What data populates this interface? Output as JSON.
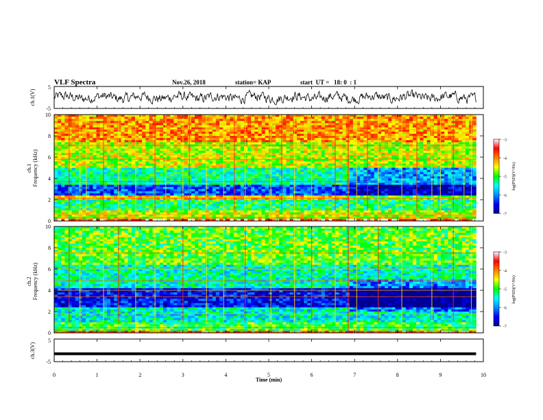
{
  "header": {
    "title": "VLF Spectra",
    "date": "Nov.26, 2018",
    "station": "station= KAP",
    "start_time": "start  UT =   18: 0  : 1"
  },
  "chart_data": [
    {
      "id": "ch1-waveform",
      "type": "line",
      "ylabel": "ch.1(V)",
      "ylim": [
        -5,
        5
      ],
      "yticks": [
        "5",
        "-5"
      ],
      "xlim": [
        0,
        10
      ],
      "data_extent_x": [
        0,
        9.83
      ],
      "description_of_signal": "noisy waveform fluctuating roughly between -3 and 3 V"
    },
    {
      "id": "ch1-spectrogram",
      "type": "heatmap",
      "ylabel": "ch.1\nFrequency (kHz)",
      "ylabel_lines": [
        "ch.1",
        "Frequency (kHz)"
      ],
      "ylim": [
        0,
        10
      ],
      "yticks": [
        0,
        2,
        4,
        6,
        8,
        10
      ],
      "xlim": [
        0,
        10
      ],
      "data_extent_x": [
        0,
        9.83
      ],
      "colorbar": {
        "label": "log(PSD)(V²/Hz)",
        "range": [
          -7,
          -3
        ],
        "ticks": [
          -3,
          -4,
          -5,
          -6,
          -7
        ],
        "colormap": [
          "#000090",
          "#0000ff",
          "#0090ff",
          "#00ffff",
          "#00ff00",
          "#ffff00",
          "#ff8000",
          "#ff0000",
          "#ffffff"
        ]
      },
      "segment_change_x": 6.85,
      "band_levels": [
        {
          "f0": 0.0,
          "f1": 0.3,
          "level": -3.4
        },
        {
          "f0": 0.3,
          "f1": 1.0,
          "level": -4.6
        },
        {
          "f0": 1.0,
          "f1": 2.0,
          "level": -5.2
        },
        {
          "f0": 2.0,
          "f1": 2.4,
          "level": -4.3
        },
        {
          "f0": 2.4,
          "f1": 3.5,
          "level": -6.2
        },
        {
          "f0": 3.5,
          "f1": 5.0,
          "level": -5.3
        },
        {
          "f0": 5.0,
          "f1": 7.5,
          "level": -4.6
        },
        {
          "f0": 7.5,
          "f1": 10.0,
          "level": -4.1
        }
      ],
      "horizontal_lines_khz": [
        0.3,
        0.6,
        2.1,
        2.2,
        3.7,
        5.2,
        5.8,
        6.2,
        7.1,
        8.6
      ],
      "vertical_bursts_min": [
        0.35,
        0.6,
        0.75,
        1.15,
        1.5,
        1.9,
        2.35,
        2.6,
        3.0,
        3.15,
        3.55,
        3.95,
        4.2,
        4.45,
        5.05,
        5.3,
        5.6,
        6.0,
        6.55,
        6.85,
        7.05,
        7.3,
        7.55,
        8.1,
        8.45,
        8.8,
        9.0,
        9.3,
        9.55,
        9.72
      ]
    },
    {
      "id": "ch2-spectrogram",
      "type": "heatmap",
      "ylabel": "ch.2\nFrequency (kHz)",
      "ylabel_lines": [
        "ch.2",
        "Frequency (kHz)"
      ],
      "ylim": [
        0,
        10
      ],
      "yticks": [
        0,
        2,
        4,
        6,
        8,
        10
      ],
      "xlim": [
        0,
        10
      ],
      "data_extent_x": [
        0,
        9.83
      ],
      "colorbar": {
        "label": "log(PSD)(V²/Hz)",
        "range": [
          -7,
          -3
        ],
        "ticks": [
          -3,
          -4,
          -5,
          -6,
          -7
        ],
        "colormap": [
          "#000090",
          "#0000ff",
          "#0090ff",
          "#00ffff",
          "#00ff00",
          "#ffff00",
          "#ff8000",
          "#ff0000",
          "#ffffff"
        ]
      },
      "segment_change_x": 6.85,
      "band_levels": [
        {
          "f0": 0.0,
          "f1": 0.3,
          "level": -3.7
        },
        {
          "f0": 0.3,
          "f1": 1.0,
          "level": -5.0
        },
        {
          "f0": 1.0,
          "f1": 2.5,
          "level": -5.5
        },
        {
          "f0": 2.5,
          "f1": 4.2,
          "level": -6.5
        },
        {
          "f0": 4.2,
          "f1": 6.5,
          "level": -5.4
        },
        {
          "f0": 6.5,
          "f1": 10.0,
          "level": -4.9
        }
      ],
      "horizontal_lines_khz": [
        0.5,
        1.8,
        3.4,
        4.0,
        4.9,
        6.0,
        7.5,
        8.6
      ],
      "vertical_bursts_min": [
        0.35,
        0.6,
        1.15,
        1.5,
        1.9,
        2.35,
        3.0,
        3.55,
        3.95,
        4.45,
        5.05,
        5.6,
        6.0,
        6.55,
        7.05,
        7.55,
        8.1,
        8.8,
        9.3,
        9.72
      ]
    },
    {
      "id": "ch3-waveform",
      "type": "line",
      "ylabel": "ch.3(V)",
      "ylim": [
        -5,
        5
      ],
      "yticks": [
        "5",
        "-5"
      ],
      "xlim": [
        0,
        10
      ],
      "data_extent_x": [
        0,
        9.83
      ],
      "constant_value": -1.5
    }
  ],
  "xaxis": {
    "label": "Time (min)",
    "ticks": [
      0,
      1,
      2,
      3,
      4,
      5,
      6,
      7,
      8,
      9,
      10
    ]
  }
}
